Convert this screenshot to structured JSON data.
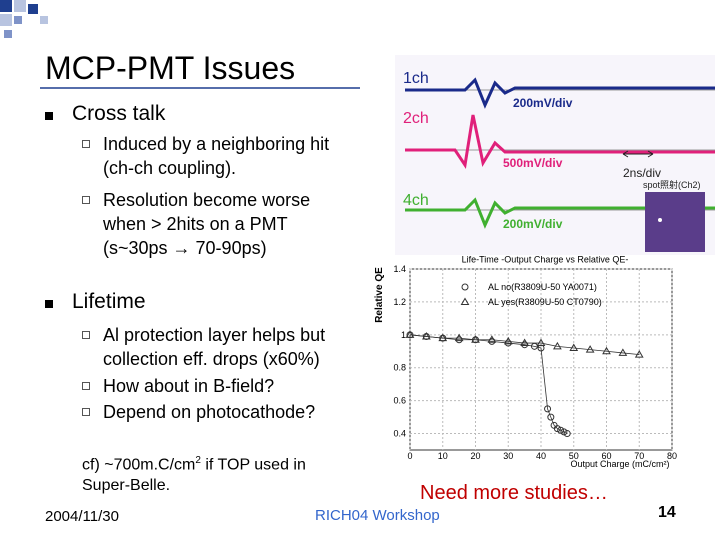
{
  "title": "MCP-PMT Issues",
  "bullets": [
    {
      "text": "Cross talk",
      "sub": [
        "Induced by a neighboring hit (ch-ch coupling).",
        "Resolution become worse when > 2hits on a PMT (s~30ps → 70-90ps)"
      ]
    },
    {
      "text": "Lifetime",
      "sub": [
        "Al protection layer helps but collection eff. drops (x60%)",
        "How about in B-field?",
        "Depend on photocathode?"
      ]
    }
  ],
  "note": {
    "before": "cf) ~700m.C/cm",
    "sup": "2",
    "after": " if TOP used in Super-Belle."
  },
  "callout": "Need more studies…",
  "footer": {
    "date": "2004/11/30",
    "event": "RICH04 Workshop",
    "page": "14"
  },
  "scope": {
    "channels": [
      "1ch",
      "2ch",
      "4ch"
    ],
    "scales": [
      "200mV/div",
      "500mV/div",
      "200mV/div"
    ],
    "time": "2ns/div",
    "spot": "spot照射(Ch2)"
  },
  "chart_data": {
    "type": "scatter",
    "title": "Life-Time -Output Charge vs Relative QE-",
    "xlabel": "Output Charge (mC/cm²)",
    "ylabel": "Relative QE",
    "xlim": [
      0,
      80
    ],
    "xticks": [
      0,
      10,
      20,
      30,
      40,
      50,
      60,
      70,
      80
    ],
    "ylim": [
      0.3,
      1.4
    ],
    "yticks": [
      0.4,
      0.6,
      0.8,
      1,
      1.2,
      1.4
    ],
    "grid": true,
    "series": [
      {
        "name": "AL no(R3809U-50 YA0071)",
        "marker": "circle",
        "color": "#333333",
        "x": [
          0,
          5,
          10,
          15,
          20,
          25,
          30,
          35,
          38,
          40,
          42,
          43,
          44,
          45,
          46,
          47,
          48
        ],
        "values": [
          1.0,
          0.99,
          0.98,
          0.97,
          0.97,
          0.96,
          0.95,
          0.94,
          0.93,
          0.92,
          0.55,
          0.5,
          0.45,
          0.43,
          0.42,
          0.41,
          0.4
        ]
      },
      {
        "name": "AL yes(R3809U-50 CT0790)",
        "marker": "triangle",
        "color": "#333333",
        "x": [
          0,
          5,
          10,
          15,
          20,
          25,
          30,
          35,
          40,
          45,
          50,
          55,
          60,
          65,
          70
        ],
        "values": [
          1.0,
          0.99,
          0.98,
          0.98,
          0.97,
          0.97,
          0.96,
          0.95,
          0.95,
          0.93,
          0.92,
          0.91,
          0.9,
          0.89,
          0.88
        ]
      }
    ]
  }
}
